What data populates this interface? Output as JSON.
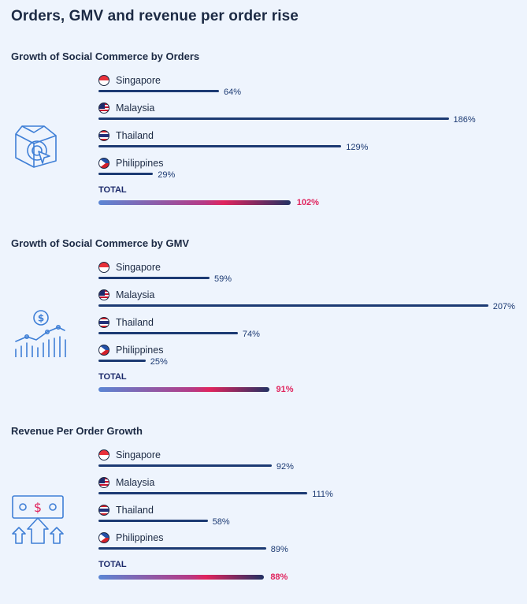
{
  "title": "Orders, GMV and revenue per order rise",
  "sections": [
    {
      "title": "Growth of Social Commerce by Orders",
      "icon": "box-click-icon",
      "rows": [
        {
          "country": "Singapore",
          "flag": "singapore-flag-icon",
          "value": 64,
          "label": "64%"
        },
        {
          "country": "Malaysia",
          "flag": "malaysia-flag-icon",
          "value": 186,
          "label": "186%"
        },
        {
          "country": "Thailand",
          "flag": "thailand-flag-icon",
          "value": 129,
          "label": "129%"
        },
        {
          "country": "Philippines",
          "flag": "philippines-flag-icon",
          "value": 29,
          "label": "29%"
        }
      ],
      "total": {
        "label": "TOTAL",
        "value": 102,
        "text": "102%"
      }
    },
    {
      "title": "Growth of Social Commerce by GMV",
      "icon": "dollar-chart-icon",
      "rows": [
        {
          "country": "Singapore",
          "flag": "singapore-flag-icon",
          "value": 59,
          "label": "59%"
        },
        {
          "country": "Malaysia",
          "flag": "malaysia-flag-icon",
          "value": 207,
          "label": "207%"
        },
        {
          "country": "Thailand",
          "flag": "thailand-flag-icon",
          "value": 74,
          "label": "74%"
        },
        {
          "country": "Philippines",
          "flag": "philippines-flag-icon",
          "value": 25,
          "label": "25%"
        }
      ],
      "total": {
        "label": "TOTAL",
        "value": 91,
        "text": "91%"
      }
    },
    {
      "title": "Revenue Per Order Growth",
      "icon": "banknote-arrows-icon",
      "rows": [
        {
          "country": "Singapore",
          "flag": "singapore-flag-icon",
          "value": 92,
          "label": "92%"
        },
        {
          "country": "Malaysia",
          "flag": "malaysia-flag-icon",
          "value": 111,
          "label": "111%"
        },
        {
          "country": "Thailand",
          "flag": "thailand-flag-icon",
          "value": 58,
          "label": "58%"
        },
        {
          "country": "Philippines",
          "flag": "philippines-flag-icon",
          "value": 89,
          "label": "89%"
        }
      ],
      "total": {
        "label": "TOTAL",
        "value": 88,
        "text": "88%"
      }
    }
  ],
  "colors": {
    "bar": "#1c3a73",
    "total_value": "#e0245e",
    "icon": "#3f7fd6"
  },
  "chart_data": [
    {
      "type": "bar",
      "title": "Growth of Social Commerce by Orders",
      "categories": [
        "Singapore",
        "Malaysia",
        "Thailand",
        "Philippines",
        "TOTAL"
      ],
      "values": [
        64,
        186,
        129,
        29,
        102
      ],
      "unit": "%"
    },
    {
      "type": "bar",
      "title": "Growth of Social Commerce by GMV",
      "categories": [
        "Singapore",
        "Malaysia",
        "Thailand",
        "Philippines",
        "TOTAL"
      ],
      "values": [
        59,
        207,
        74,
        25,
        91
      ],
      "unit": "%"
    },
    {
      "type": "bar",
      "title": "Revenue Per Order Growth",
      "categories": [
        "Singapore",
        "Malaysia",
        "Thailand",
        "Philippines",
        "TOTAL"
      ],
      "values": [
        92,
        111,
        58,
        89,
        88
      ],
      "unit": "%"
    }
  ]
}
